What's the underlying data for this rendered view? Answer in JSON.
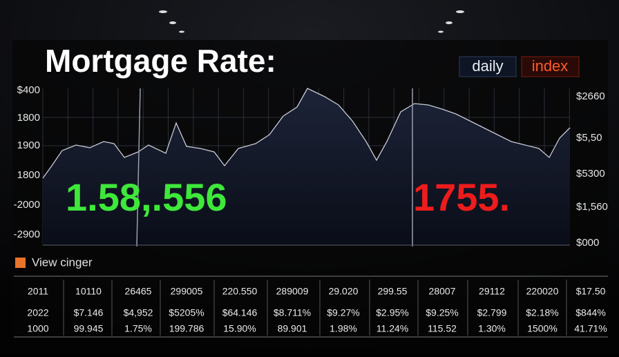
{
  "header": {
    "title": "Mortgage Rate:",
    "tabs": [
      "daily",
      "index"
    ]
  },
  "left_axis": [
    "$400",
    "1800",
    "1900",
    "1800",
    "-2000",
    "-2900"
  ],
  "right_axis": [
    "$2660",
    "$5,50",
    "$5300",
    "$1,560",
    "$000"
  ],
  "big_numbers": [
    "1.58,.556",
    "1755."
  ],
  "link": "View cinger",
  "table": {
    "rows": [
      [
        "2011",
        "10110",
        "26465",
        "299005",
        "220.550",
        "289009",
        "29.020",
        "299.55",
        "28007",
        "29112",
        "220020",
        "$17.50"
      ],
      [
        "2022",
        "$7.146",
        "$4,952",
        "$5205%",
        "$64.146",
        "$8.711%",
        "$9.27%",
        "$2.95%",
        "$9.25%",
        "$2.799",
        "$2.18%",
        "$844%"
      ],
      [
        "1000",
        "99.945",
        "1.75%",
        "199.786",
        "15.90%",
        "89.901",
        "1.98%",
        "11.24%",
        "115.52",
        "1.30%",
        "1500%",
        "41.71%"
      ]
    ]
  }
}
